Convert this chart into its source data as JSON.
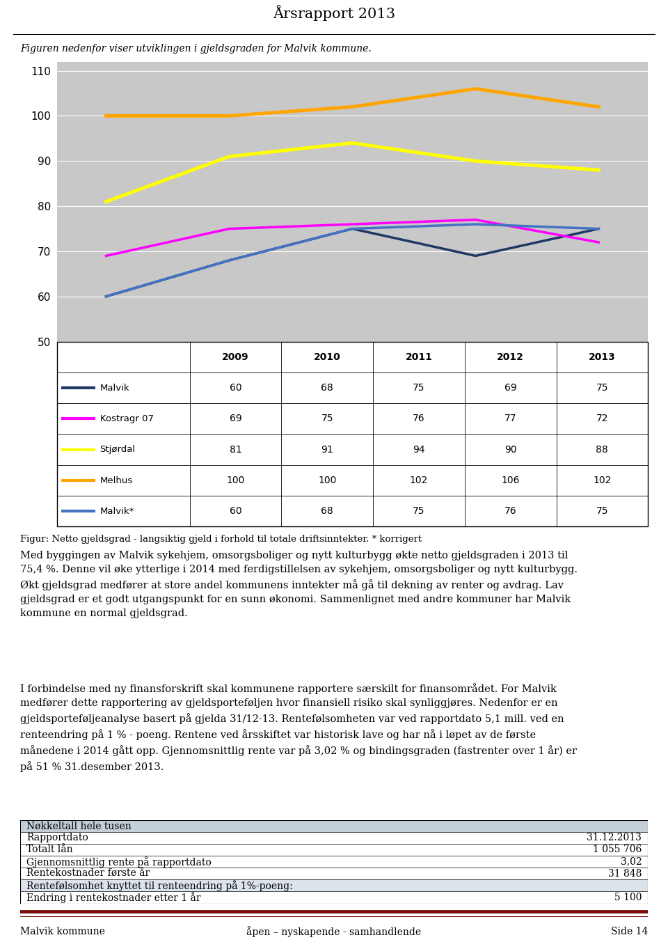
{
  "title": "Årsrapport 2013",
  "intro_text": "Figuren nedenfor viser utviklingen i gjeldsgraden for Malvik kommune.",
  "chart_bg": "#c8c8c8",
  "years": [
    2009,
    2010,
    2011,
    2012,
    2013
  ],
  "series": [
    {
      "label": "Malvik",
      "color": "#1f3864",
      "values": [
        60,
        68,
        75,
        69,
        75
      ],
      "linewidth": 2.5
    },
    {
      "label": "Kostragr 07",
      "color": "#ff00ff",
      "values": [
        69,
        75,
        76,
        77,
        72
      ],
      "linewidth": 2.5
    },
    {
      "label": "Stjørdal",
      "color": "#ffff00",
      "values": [
        81,
        91,
        94,
        90,
        88
      ],
      "linewidth": 3.5
    },
    {
      "label": "Melhus",
      "color": "#ffa500",
      "values": [
        100,
        100,
        102,
        106,
        102
      ],
      "linewidth": 3.5
    },
    {
      "label": "Malvik*",
      "color": "#4472c4",
      "values": [
        60,
        68,
        75,
        76,
        75
      ],
      "linewidth": 2.5
    }
  ],
  "ylim": [
    50,
    112
  ],
  "yticks": [
    50,
    60,
    70,
    80,
    90,
    100,
    110
  ],
  "table_header": [
    "",
    "2009",
    "2010",
    "2011",
    "2012",
    "2013"
  ],
  "table_rows": [
    [
      "Malvik",
      "60",
      "68",
      "75",
      "69",
      "75"
    ],
    [
      "Kostragr 07",
      "69",
      "75",
      "76",
      "77",
      "72"
    ],
    [
      "Stjørdal",
      "81",
      "91",
      "94",
      "90",
      "88"
    ],
    [
      "Melhus",
      "100",
      "100",
      "102",
      "106",
      "102"
    ],
    [
      "Malvik*",
      "60",
      "68",
      "75",
      "76",
      "75"
    ]
  ],
  "legend_colors": [
    "#1f3864",
    "#ff00ff",
    "#ffff00",
    "#ffa500",
    "#4472c4"
  ],
  "figure_caption": "Figur: Netto gjeldsgrad - langsiktig gjeld i forhold til totale driftsinntekter. * korrigert",
  "para1": "Med byggingen av Malvik sykehjem, omsorgsboliger og nytt kulturbygg økte netto gjeldsgraden i 2013 til\n75,4 %. Denne vil øke ytterlige i 2014 med ferdigstillelsen av sykehjem, omsorgsboliger og nytt kulturbygg.\nØkt gjeldsgrad medfører at store andel kommunens inntekter må gå til dekning av renter og avdrag. Lav\ngjeldsgrad er et godt utgangspunkt for en sunn økonomi. Sammenlignet med andre kommuner har Malvik\nkommune en normal gjeldsgrad.",
  "para2": "I forbindelse med ny finansforskrift skal kommunene rapportere særskilt for finansområdet. For Malvik\nmedfører dette rapportering av gjeldsporteføljen hvor finansiell risiko skal synliggjøres. Nedenfor er en\ngjeldsporteføljeanalyse basert på gjelda 31/12-13. Rentefølsomheten var ved rapportdato 5,1 mill. ved en\nrenteendring på 1 % - poeng. Rentene ved årsskiftet var historisk lave og har nå i løpet av de første\nmånedene i 2014 gått opp. Gjennomsnittlig rente var på 3,02 % og bindingsgraden (fastrenter over 1 år) er\npå 51 % 31.desember 2013.",
  "nokkeltall_header": "Nøkkeltall hele tusen",
  "nokkeltall_rows": [
    [
      "Rapportdato",
      "31.12.2013"
    ],
    [
      "Totalt lån",
      "1 055 706"
    ],
    [
      "Gjennomsnittlig rente på rapportdato",
      "3,02"
    ],
    [
      "Rentekostnader første år",
      "31 848"
    ],
    [
      "Rentefølsomhet knyttet til renteendring på 1%-poeng:",
      ""
    ],
    [
      "Endring i rentekostnader etter 1 år",
      "5 100"
    ]
  ],
  "footer_left": "Malvik kommune",
  "footer_center": "åpen – nyskapende - samhandlende",
  "footer_right": "Side 14",
  "footer_line_color": "#7b0c0c"
}
